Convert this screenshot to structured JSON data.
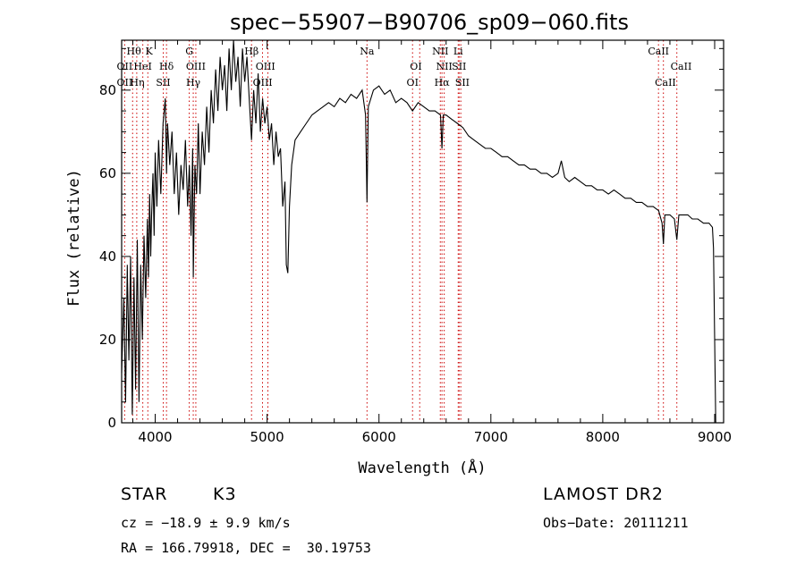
{
  "chart_data": {
    "type": "line",
    "title": "spec−55907−B90706_sp09−060.fits",
    "xlabel": "Wavelength (Å)",
    "ylabel": "Flux (relative)",
    "xlim": [
      3700,
      9080
    ],
    "ylim": [
      0,
      92
    ],
    "xticks": [
      4000,
      5000,
      6000,
      7000,
      8000,
      9000
    ],
    "yticks": [
      0,
      20,
      40,
      60,
      80
    ],
    "grid": false,
    "series": [
      {
        "values": [
          [
            3700,
            12
          ],
          [
            3720,
            30
          ],
          [
            3735,
            5
          ],
          [
            3750,
            38
          ],
          [
            3765,
            15
          ],
          [
            3780,
            40
          ],
          [
            3795,
            2
          ],
          [
            3810,
            35
          ],
          [
            3825,
            8
          ],
          [
            3840,
            44
          ],
          [
            3855,
            5
          ],
          [
            3870,
            38
          ],
          [
            3885,
            20
          ],
          [
            3900,
            45
          ],
          [
            3915,
            30
          ],
          [
            3930,
            49
          ],
          [
            3940,
            35
          ],
          [
            3950,
            55
          ],
          [
            3960,
            40
          ],
          [
            3968,
            50
          ],
          [
            3980,
            60
          ],
          [
            3990,
            45
          ],
          [
            4000,
            65
          ],
          [
            4015,
            52
          ],
          [
            4030,
            68
          ],
          [
            4050,
            55
          ],
          [
            4070,
            72
          ],
          [
            4090,
            78
          ],
          [
            4101,
            60
          ],
          [
            4110,
            72
          ],
          [
            4130,
            62
          ],
          [
            4150,
            70
          ],
          [
            4170,
            55
          ],
          [
            4190,
            65
          ],
          [
            4210,
            50
          ],
          [
            4230,
            62
          ],
          [
            4250,
            56
          ],
          [
            4270,
            68
          ],
          [
            4290,
            52
          ],
          [
            4305,
            62
          ],
          [
            4320,
            45
          ],
          [
            4335,
            66
          ],
          [
            4340,
            35
          ],
          [
            4355,
            62
          ],
          [
            4370,
            55
          ],
          [
            4385,
            72
          ],
          [
            4400,
            55
          ],
          [
            4420,
            70
          ],
          [
            4440,
            62
          ],
          [
            4460,
            76
          ],
          [
            4480,
            65
          ],
          [
            4500,
            80
          ],
          [
            4520,
            72
          ],
          [
            4540,
            85
          ],
          [
            4560,
            75
          ],
          [
            4580,
            88
          ],
          [
            4600,
            80
          ],
          [
            4620,
            86
          ],
          [
            4640,
            75
          ],
          [
            4660,
            90
          ],
          [
            4680,
            80
          ],
          [
            4700,
            92
          ],
          [
            4720,
            82
          ],
          [
            4740,
            88
          ],
          [
            4760,
            76
          ],
          [
            4780,
            90
          ],
          [
            4800,
            82
          ],
          [
            4820,
            88
          ],
          [
            4840,
            78
          ],
          [
            4861,
            68
          ],
          [
            4880,
            80
          ],
          [
            4900,
            72
          ],
          [
            4920,
            84
          ],
          [
            4940,
            70
          ],
          [
            4960,
            78
          ],
          [
            4980,
            72
          ],
          [
            5000,
            76
          ],
          [
            5020,
            68
          ],
          [
            5040,
            72
          ],
          [
            5060,
            62
          ],
          [
            5080,
            70
          ],
          [
            5100,
            64
          ],
          [
            5120,
            66
          ],
          [
            5140,
            52
          ],
          [
            5160,
            58
          ],
          [
            5172,
            38
          ],
          [
            5185,
            36
          ],
          [
            5200,
            52
          ],
          [
            5220,
            62
          ],
          [
            5250,
            68
          ],
          [
            5300,
            70
          ],
          [
            5350,
            72
          ],
          [
            5400,
            74
          ],
          [
            5450,
            75
          ],
          [
            5500,
            76
          ],
          [
            5550,
            77
          ],
          [
            5600,
            76
          ],
          [
            5650,
            78
          ],
          [
            5700,
            77
          ],
          [
            5750,
            79
          ],
          [
            5800,
            78
          ],
          [
            5850,
            80
          ],
          [
            5880,
            74
          ],
          [
            5893,
            53
          ],
          [
            5905,
            76
          ],
          [
            5950,
            80
          ],
          [
            6000,
            81
          ],
          [
            6050,
            79
          ],
          [
            6100,
            80
          ],
          [
            6150,
            77
          ],
          [
            6200,
            78
          ],
          [
            6250,
            77
          ],
          [
            6300,
            75
          ],
          [
            6350,
            77
          ],
          [
            6400,
            76
          ],
          [
            6450,
            75
          ],
          [
            6500,
            75
          ],
          [
            6550,
            74
          ],
          [
            6563,
            66
          ],
          [
            6575,
            74
          ],
          [
            6600,
            74
          ],
          [
            6650,
            73
          ],
          [
            6700,
            72
          ],
          [
            6750,
            71
          ],
          [
            6800,
            69
          ],
          [
            6850,
            68
          ],
          [
            6900,
            67
          ],
          [
            6950,
            66
          ],
          [
            7000,
            66
          ],
          [
            7050,
            65
          ],
          [
            7100,
            64
          ],
          [
            7150,
            64
          ],
          [
            7200,
            63
          ],
          [
            7250,
            62
          ],
          [
            7300,
            62
          ],
          [
            7350,
            61
          ],
          [
            7400,
            61
          ],
          [
            7450,
            60
          ],
          [
            7500,
            60
          ],
          [
            7550,
            59
          ],
          [
            7600,
            60
          ],
          [
            7630,
            63
          ],
          [
            7660,
            59
          ],
          [
            7700,
            58
          ],
          [
            7750,
            59
          ],
          [
            7800,
            58
          ],
          [
            7850,
            57
          ],
          [
            7900,
            57
          ],
          [
            7950,
            56
          ],
          [
            8000,
            56
          ],
          [
            8050,
            55
          ],
          [
            8100,
            56
          ],
          [
            8150,
            55
          ],
          [
            8200,
            54
          ],
          [
            8250,
            54
          ],
          [
            8300,
            53
          ],
          [
            8350,
            53
          ],
          [
            8400,
            52
          ],
          [
            8450,
            52
          ],
          [
            8500,
            51
          ],
          [
            8530,
            48
          ],
          [
            8542,
            43
          ],
          [
            8555,
            50
          ],
          [
            8600,
            50
          ],
          [
            8640,
            49
          ],
          [
            8662,
            44
          ],
          [
            8680,
            50
          ],
          [
            8720,
            50
          ],
          [
            8760,
            50
          ],
          [
            8800,
            49
          ],
          [
            8850,
            49
          ],
          [
            8900,
            48
          ],
          [
            8950,
            48
          ],
          [
            8980,
            47
          ],
          [
            8990,
            42
          ],
          [
            9000,
            20
          ],
          [
            9010,
            0
          ]
        ]
      }
    ]
  },
  "lines": [
    {
      "name": "Hθ",
      "wl": 3798,
      "row": 0,
      "x": 3809
    },
    {
      "name": "K",
      "wl": 3934,
      "row": 0,
      "x": 3945
    },
    {
      "name": "G",
      "wl": 4304,
      "row": 0,
      "x": 4305
    },
    {
      "name": "Hβ",
      "wl": 4861,
      "row": 0,
      "x": 4861
    },
    {
      "name": "Na",
      "wl": 5893,
      "row": 0,
      "x": 5893
    },
    {
      "name": "NII",
      "wl": 6548,
      "row": 0,
      "x": 6548
    },
    {
      "name": "Li",
      "wl": 6708,
      "row": 0,
      "x": 6708
    },
    {
      "name": "CaII",
      "wl": 8498,
      "row": 0,
      "x": 8498
    },
    {
      "name": "OII",
      "wl": 3727,
      "row": 1,
      "x": 3727
    },
    {
      "name": "HeI",
      "wl": 3889,
      "row": 1,
      "x": 3889
    },
    {
      "name": "Hδ",
      "wl": 4101,
      "row": 1,
      "x": 4101
    },
    {
      "name": "OIII",
      "wl": 4363,
      "row": 1,
      "x": 4363
    },
    {
      "name": "OIII",
      "wl": 4959,
      "row": 1,
      "x": 4985
    },
    {
      "name": "OI",
      "wl": 6300,
      "row": 1,
      "x": 6330
    },
    {
      "name": "NII",
      "wl": 6583,
      "row": 1,
      "x": 6583
    },
    {
      "name": "SII",
      "wl": 6716,
      "row": 1,
      "x": 6716
    },
    {
      "name": "CaII",
      "wl": 8542,
      "row": 1,
      "x": 8700
    },
    {
      "name": "OII",
      "wl": 3727,
      "row": 2,
      "x": 3727
    },
    {
      "name": "Hη",
      "wl": 3835,
      "row": 2,
      "x": 3840
    },
    {
      "name": "SII",
      "wl": 4072,
      "row": 2,
      "x": 4072
    },
    {
      "name": "Hγ",
      "wl": 4340,
      "row": 2,
      "x": 4340
    },
    {
      "name": "OIII",
      "wl": 5007,
      "row": 2,
      "x": 4960
    },
    {
      "name": "OI",
      "wl": 6364,
      "row": 2,
      "x": 6300
    },
    {
      "name": "Hα",
      "wl": 6563,
      "row": 2,
      "x": 6563
    },
    {
      "name": "SII",
      "wl": 6731,
      "row": 2,
      "x": 6745
    },
    {
      "name": "CaII",
      "wl": 8662,
      "row": 2,
      "x": 8560
    }
  ],
  "info": {
    "object_class": "STAR",
    "subclass": "K3",
    "survey": "LAMOST DR2",
    "redshift": "cz = −18.9 ± 9.9 km/s",
    "obs_date": "Obs−Date: 20111211",
    "coords": "RA = 166.79918, DEC =  30.19753"
  }
}
